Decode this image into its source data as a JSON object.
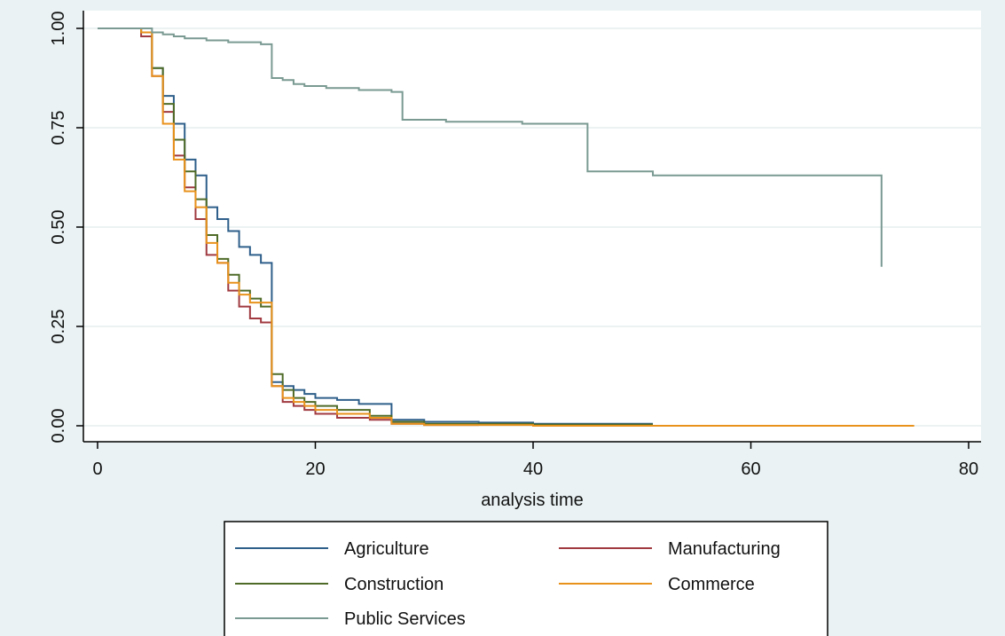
{
  "chart_data": {
    "type": "line",
    "title": "",
    "xlabel": "analysis time",
    "ylabel": "",
    "xlim": [
      0,
      80
    ],
    "ylim": [
      0,
      1
    ],
    "x_ticks": [
      0,
      20,
      40,
      60,
      80
    ],
    "x_tick_labels": [
      "0",
      "20",
      "40",
      "60",
      "80"
    ],
    "y_ticks": [
      0,
      0.25,
      0.5,
      0.75,
      1
    ],
    "y_tick_labels": [
      "0.00",
      "0.25",
      "0.50",
      "0.75",
      "1.00"
    ],
    "grid": true,
    "legend_position": "bottom",
    "step": true,
    "series": [
      {
        "name": "Agriculture",
        "color": "#2e5f8a",
        "x": [
          0,
          4,
          5,
          6,
          7,
          8,
          9,
          10,
          11,
          12,
          13,
          14,
          15,
          16,
          17,
          18,
          19,
          20,
          22,
          24,
          27,
          30,
          35,
          40,
          51
        ],
        "y": [
          1,
          0.99,
          0.9,
          0.83,
          0.76,
          0.67,
          0.63,
          0.55,
          0.52,
          0.49,
          0.45,
          0.43,
          0.41,
          0.11,
          0.1,
          0.09,
          0.08,
          0.07,
          0.065,
          0.055,
          0.015,
          0.01,
          0.008,
          0.005,
          0.005
        ]
      },
      {
        "name": "Manufacturing",
        "color": "#a03a40",
        "x": [
          0,
          4,
          5,
          6,
          7,
          8,
          9,
          10,
          11,
          12,
          13,
          14,
          15,
          16,
          17,
          18,
          19,
          20,
          22,
          25,
          27,
          30,
          35
        ],
        "y": [
          1,
          0.98,
          0.88,
          0.79,
          0.68,
          0.6,
          0.52,
          0.43,
          0.41,
          0.34,
          0.3,
          0.27,
          0.26,
          0.1,
          0.06,
          0.05,
          0.04,
          0.03,
          0.02,
          0.015,
          0.005,
          0.002,
          0.002
        ]
      },
      {
        "name": "Construction",
        "color": "#4f6b28",
        "x": [
          0,
          4,
          5,
          6,
          7,
          8,
          9,
          10,
          11,
          12,
          13,
          14,
          15,
          16,
          17,
          18,
          19,
          20,
          22,
          25,
          27,
          30,
          40,
          51
        ],
        "y": [
          1,
          0.99,
          0.9,
          0.81,
          0.72,
          0.64,
          0.57,
          0.48,
          0.42,
          0.38,
          0.34,
          0.32,
          0.3,
          0.13,
          0.09,
          0.07,
          0.06,
          0.05,
          0.04,
          0.025,
          0.01,
          0.005,
          0.003,
          0.003
        ]
      },
      {
        "name": "Commerce",
        "color": "#e8921c",
        "x": [
          0,
          4,
          5,
          6,
          7,
          8,
          9,
          10,
          11,
          12,
          13,
          14,
          15,
          16,
          17,
          18,
          19,
          20,
          22,
          25,
          27,
          30,
          40,
          75
        ],
        "y": [
          1,
          0.99,
          0.88,
          0.76,
          0.67,
          0.59,
          0.55,
          0.46,
          0.41,
          0.36,
          0.33,
          0.31,
          0.31,
          0.1,
          0.07,
          0.06,
          0.05,
          0.04,
          0.03,
          0.02,
          0.005,
          0.002,
          0,
          0
        ]
      },
      {
        "name": "Public Services",
        "color": "#7a9a92",
        "x": [
          0,
          4,
          5,
          6,
          7,
          8,
          10,
          12,
          15,
          16,
          17,
          18,
          19,
          21,
          24,
          27,
          28,
          32,
          39,
          45,
          51,
          72
        ],
        "y": [
          1,
          1,
          0.99,
          0.985,
          0.98,
          0.975,
          0.97,
          0.965,
          0.96,
          0.875,
          0.87,
          0.86,
          0.855,
          0.85,
          0.845,
          0.84,
          0.77,
          0.765,
          0.76,
          0.64,
          0.63,
          0.4
        ]
      }
    ]
  }
}
